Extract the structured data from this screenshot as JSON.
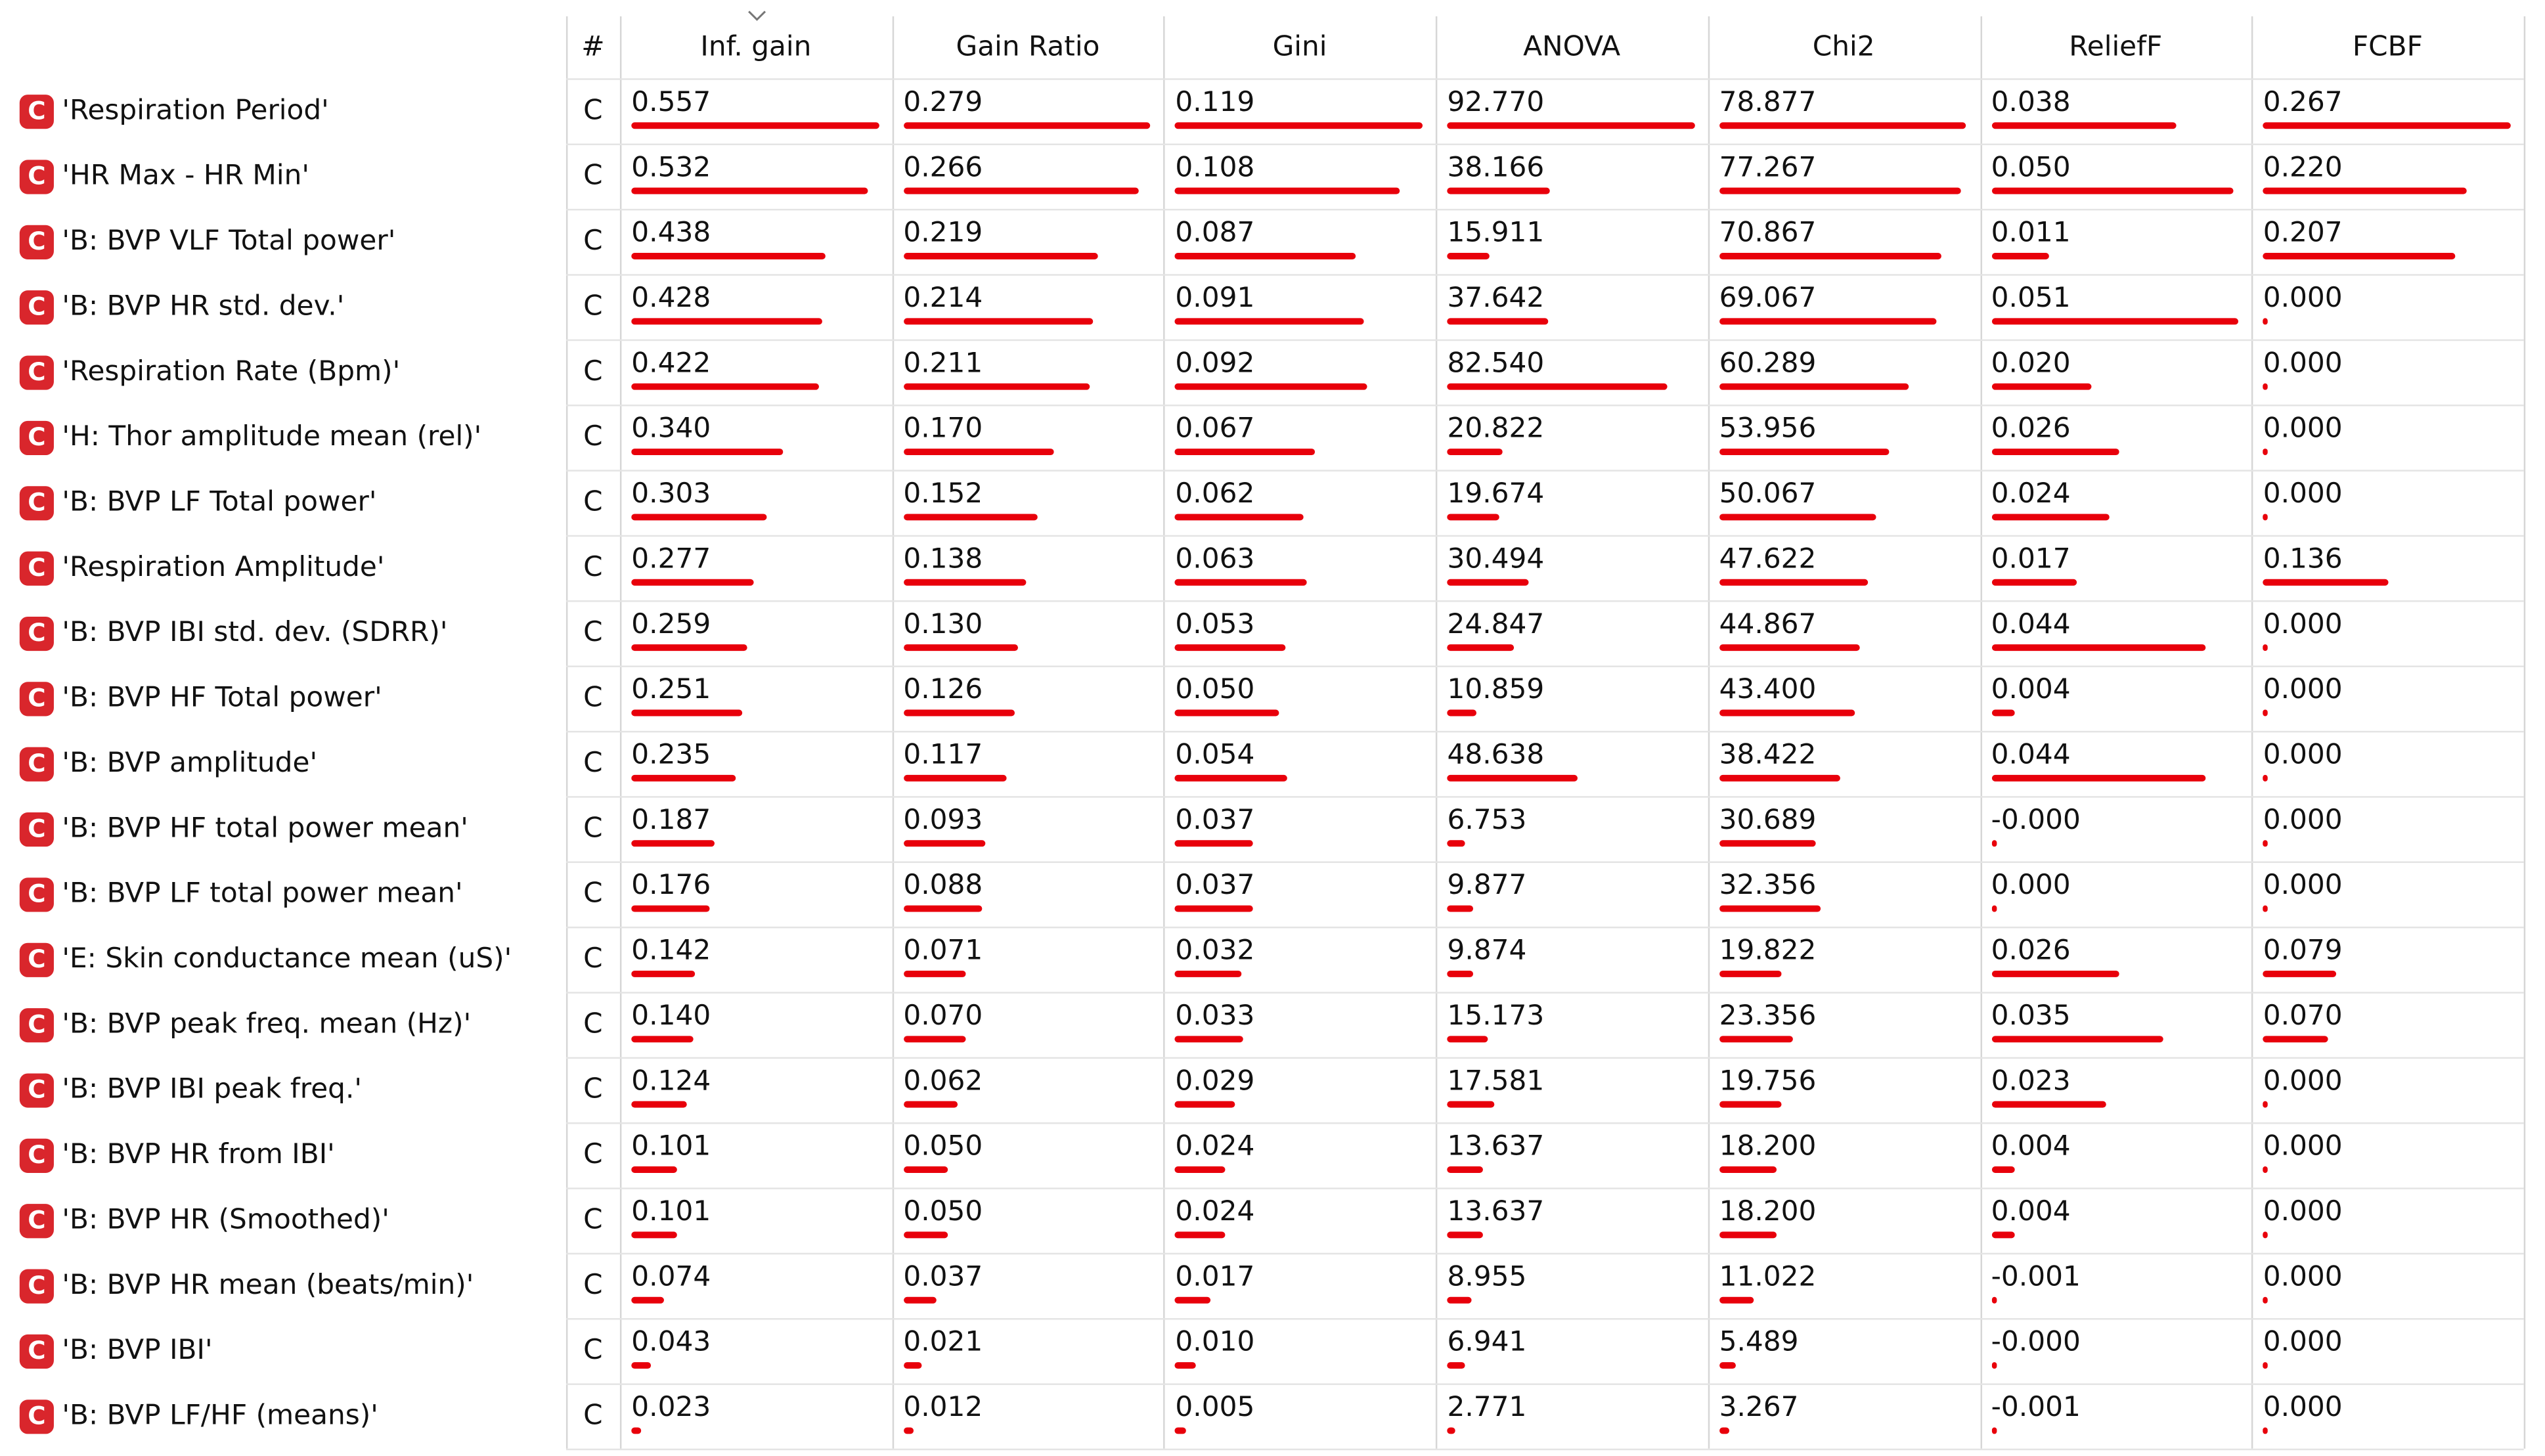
{
  "header": {
    "columns": [
      "#",
      "Inf. gain",
      "Gain Ratio",
      "Gini",
      "ANOVA",
      "Chi2",
      "ReliefF",
      "FCBF"
    ]
  },
  "rows": [
    {
      "icon": "C",
      "name": "'Respiration Period'",
      "type": "C",
      "values": [
        "0.557",
        "0.279",
        "0.119",
        "92.770",
        "78.877",
        "0.038",
        "0.267"
      ]
    },
    {
      "icon": "C",
      "name": "'HR Max - HR Min'",
      "type": "C",
      "values": [
        "0.532",
        "0.266",
        "0.108",
        "38.166",
        "77.267",
        "0.050",
        "0.220"
      ]
    },
    {
      "icon": "C",
      "name": "'B: BVP VLF Total power'",
      "type": "C",
      "values": [
        "0.438",
        "0.219",
        "0.087",
        "15.911",
        "70.867",
        "0.011",
        "0.207"
      ]
    },
    {
      "icon": "C",
      "name": "'B: BVP HR std. dev.'",
      "type": "C",
      "values": [
        "0.428",
        "0.214",
        "0.091",
        "37.642",
        "69.067",
        "0.051",
        "0.000"
      ]
    },
    {
      "icon": "C",
      "name": "'Respiration Rate (Bpm)'",
      "type": "C",
      "values": [
        "0.422",
        "0.211",
        "0.092",
        "82.540",
        "60.289",
        "0.020",
        "0.000"
      ]
    },
    {
      "icon": "C",
      "name": "'H: Thor amplitude mean (rel)'",
      "type": "C",
      "values": [
        "0.340",
        "0.170",
        "0.067",
        "20.822",
        "53.956",
        "0.026",
        "0.000"
      ]
    },
    {
      "icon": "C",
      "name": "'B: BVP LF Total power'",
      "type": "C",
      "values": [
        "0.303",
        "0.152",
        "0.062",
        "19.674",
        "50.067",
        "0.024",
        "0.000"
      ]
    },
    {
      "icon": "C",
      "name": "'Respiration Amplitude'",
      "type": "C",
      "values": [
        "0.277",
        "0.138",
        "0.063",
        "30.494",
        "47.622",
        "0.017",
        "0.136"
      ]
    },
    {
      "icon": "C",
      "name": "'B: BVP IBI std. dev. (SDRR)'",
      "type": "C",
      "values": [
        "0.259",
        "0.130",
        "0.053",
        "24.847",
        "44.867",
        "0.044",
        "0.000"
      ]
    },
    {
      "icon": "C",
      "name": "'B: BVP HF Total power'",
      "type": "C",
      "values": [
        "0.251",
        "0.126",
        "0.050",
        "10.859",
        "43.400",
        "0.004",
        "0.000"
      ]
    },
    {
      "icon": "C",
      "name": "'B: BVP amplitude'",
      "type": "C",
      "values": [
        "0.235",
        "0.117",
        "0.054",
        "48.638",
        "38.422",
        "0.044",
        "0.000"
      ]
    },
    {
      "icon": "C",
      "name": "'B: BVP HF total power mean'",
      "type": "C",
      "values": [
        "0.187",
        "0.093",
        "0.037",
        "6.753",
        "30.689",
        "-0.000",
        "0.000"
      ]
    },
    {
      "icon": "C",
      "name": "'B: BVP LF total power mean'",
      "type": "C",
      "values": [
        "0.176",
        "0.088",
        "0.037",
        "9.877",
        "32.356",
        "0.000",
        "0.000"
      ]
    },
    {
      "icon": "C",
      "name": "'E: Skin conductance mean (uS)'",
      "type": "C",
      "values": [
        "0.142",
        "0.071",
        "0.032",
        "9.874",
        "19.822",
        "0.026",
        "0.079"
      ]
    },
    {
      "icon": "C",
      "name": "'B: BVP peak freq. mean (Hz)'",
      "type": "C",
      "values": [
        "0.140",
        "0.070",
        "0.033",
        "15.173",
        "23.356",
        "0.035",
        "0.070"
      ]
    },
    {
      "icon": "C",
      "name": "'B: BVP IBI peak freq.'",
      "type": "C",
      "values": [
        "0.124",
        "0.062",
        "0.029",
        "17.581",
        "19.756",
        "0.023",
        "0.000"
      ]
    },
    {
      "icon": "C",
      "name": "'B: BVP HR from IBI'",
      "type": "C",
      "values": [
        "0.101",
        "0.050",
        "0.024",
        "13.637",
        "18.200",
        "0.004",
        "0.000"
      ]
    },
    {
      "icon": "C",
      "name": "'B: BVP HR (Smoothed)'",
      "type": "C",
      "values": [
        "0.101",
        "0.050",
        "0.024",
        "13.637",
        "18.200",
        "0.004",
        "0.000"
      ]
    },
    {
      "icon": "C",
      "name": "'B: BVP HR mean (beats/min)'",
      "type": "C",
      "values": [
        "0.074",
        "0.037",
        "0.017",
        "8.955",
        "11.022",
        "-0.001",
        "0.000"
      ]
    },
    {
      "icon": "C",
      "name": "'B: BVP IBI'",
      "type": "C",
      "values": [
        "0.043",
        "0.021",
        "0.010",
        "6.941",
        "5.489",
        "-0.000",
        "0.000"
      ]
    },
    {
      "icon": "C",
      "name": "'B: BVP LF/HF (means)'",
      "type": "C",
      "values": [
        "0.023",
        "0.012",
        "0.005",
        "2.771",
        "3.267",
        "-0.001",
        "0.000"
      ]
    }
  ]
}
